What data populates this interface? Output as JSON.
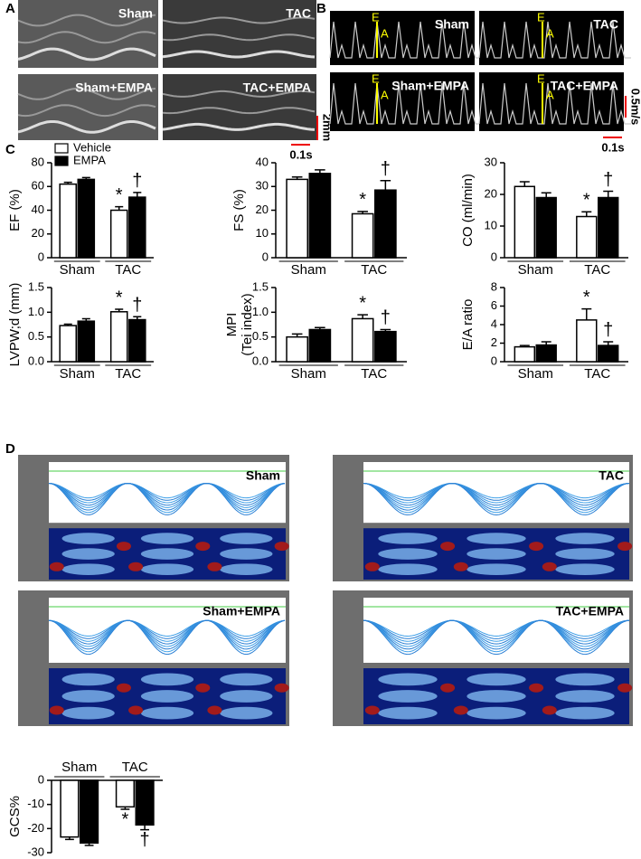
{
  "panel_labels": [
    "A",
    "B",
    "C",
    "D"
  ],
  "panel_a": {
    "labels": [
      "Sham",
      "TAC",
      "Sham+EMPA",
      "TAC+EMPA"
    ],
    "scale_y": "2mm",
    "scale_x": "0.1s"
  },
  "panel_b": {
    "labels": [
      "Sham",
      "TAC",
      "Sham+EMPA",
      "TAC+EMPA"
    ],
    "peaks": [
      "E",
      "A"
    ],
    "scale_y": "0.5m/s",
    "scale_x": "0.1s"
  },
  "panel_d": {
    "labels": [
      "Sham",
      "TAC",
      "Sham+EMPA",
      "TAC+EMPA"
    ]
  },
  "chart_data": [
    {
      "type": "bar",
      "y_label": "EF (%)",
      "categories": [
        "Sham",
        "TAC"
      ],
      "legend": true,
      "ylim": [
        0,
        80
      ],
      "yticks": [
        0,
        20,
        40,
        60,
        80
      ],
      "series": [
        {
          "name": "Vehicle",
          "color": "#ffffff",
          "values": [
            62,
            40
          ],
          "errors": [
            1.5,
            3
          ],
          "marks": [
            null,
            "*"
          ]
        },
        {
          "name": "EMPA",
          "color": "#000000",
          "values": [
            66,
            51
          ],
          "errors": [
            1.5,
            4
          ],
          "marks": [
            null,
            "†"
          ]
        }
      ]
    },
    {
      "type": "bar",
      "y_label": "FS (%)",
      "categories": [
        "Sham",
        "TAC"
      ],
      "ylim": [
        0,
        40
      ],
      "yticks": [
        0,
        10,
        20,
        30,
        40
      ],
      "series": [
        {
          "name": "Vehicle",
          "color": "#ffffff",
          "values": [
            33,
            18.5
          ],
          "errors": [
            1,
            1
          ],
          "marks": [
            null,
            "*"
          ]
        },
        {
          "name": "EMPA",
          "color": "#000000",
          "values": [
            35.5,
            28.5
          ],
          "errors": [
            1.5,
            4
          ],
          "marks": [
            null,
            "†"
          ]
        }
      ]
    },
    {
      "type": "bar",
      "y_label": "CO (ml/min)",
      "categories": [
        "Sham",
        "TAC"
      ],
      "ylim": [
        0,
        30
      ],
      "yticks": [
        0,
        10,
        20,
        30
      ],
      "series": [
        {
          "name": "Vehicle",
          "color": "#ffffff",
          "values": [
            22.5,
            13
          ],
          "errors": [
            1.5,
            1.5
          ],
          "marks": [
            null,
            "*"
          ]
        },
        {
          "name": "EMPA",
          "color": "#000000",
          "values": [
            19,
            19
          ],
          "errors": [
            1.5,
            2
          ],
          "marks": [
            null,
            "†"
          ]
        }
      ]
    },
    {
      "type": "bar",
      "y_label": "LVPW;d (mm)",
      "categories": [
        "Sham",
        "TAC"
      ],
      "ylim": [
        0,
        1.5
      ],
      "yticks": [
        {
          "value": 0,
          "label": "0.0"
        },
        0.5,
        {
          "value": 1,
          "label": "1.0"
        },
        1.5
      ],
      "series": [
        {
          "name": "Vehicle",
          "color": "#ffffff",
          "values": [
            0.73,
            1.01
          ],
          "errors": [
            0.03,
            0.05
          ],
          "marks": [
            null,
            "*"
          ]
        },
        {
          "name": "EMPA",
          "color": "#000000",
          "values": [
            0.82,
            0.85
          ],
          "errors": [
            0.05,
            0.06
          ],
          "marks": [
            null,
            "†"
          ]
        }
      ]
    },
    {
      "type": "bar",
      "y_label": [
        "MPI",
        "(Tei index)"
      ],
      "categories": [
        "Sham",
        "TAC"
      ],
      "ylim": [
        0,
        1.5
      ],
      "yticks": [
        {
          "value": 0,
          "label": "0.0"
        },
        0.5,
        {
          "value": 1,
          "label": "1.0"
        },
        1.5
      ],
      "series": [
        {
          "name": "Vehicle",
          "color": "#ffffff",
          "values": [
            0.5,
            0.87
          ],
          "errors": [
            0.06,
            0.08
          ],
          "marks": [
            null,
            "*"
          ]
        },
        {
          "name": "EMPA",
          "color": "#000000",
          "values": [
            0.65,
            0.61
          ],
          "errors": [
            0.04,
            0.04
          ],
          "marks": [
            null,
            "†"
          ]
        }
      ]
    },
    {
      "type": "bar",
      "y_label": "E/A ratio",
      "categories": [
        "Sham",
        "TAC"
      ],
      "ylim": [
        0,
        8
      ],
      "yticks": [
        0,
        2,
        4,
        6,
        8
      ],
      "series": [
        {
          "name": "Vehicle",
          "color": "#ffffff",
          "values": [
            1.6,
            4.5
          ],
          "errors": [
            0.15,
            1.2
          ],
          "marks": [
            null,
            "*"
          ]
        },
        {
          "name": "EMPA",
          "color": "#000000",
          "values": [
            1.8,
            1.75
          ],
          "errors": [
            0.35,
            0.4
          ],
          "marks": [
            null,
            "†"
          ]
        }
      ]
    },
    {
      "type": "bar",
      "y_label": "GCS%",
      "categories": [
        "Sham",
        "TAC"
      ],
      "ylim": [
        -30,
        0
      ],
      "yticks": [
        0,
        -10,
        -20,
        -30
      ],
      "series": [
        {
          "name": "Vehicle",
          "color": "#ffffff",
          "values": [
            -23.5,
            -11
          ],
          "errors": [
            1,
            1
          ],
          "marks": [
            null,
            "*"
          ]
        },
        {
          "name": "EMPA",
          "color": "#000000",
          "values": [
            -26,
            -18.5
          ],
          "errors": [
            1,
            2
          ],
          "marks": [
            null,
            "†"
          ]
        }
      ]
    }
  ]
}
